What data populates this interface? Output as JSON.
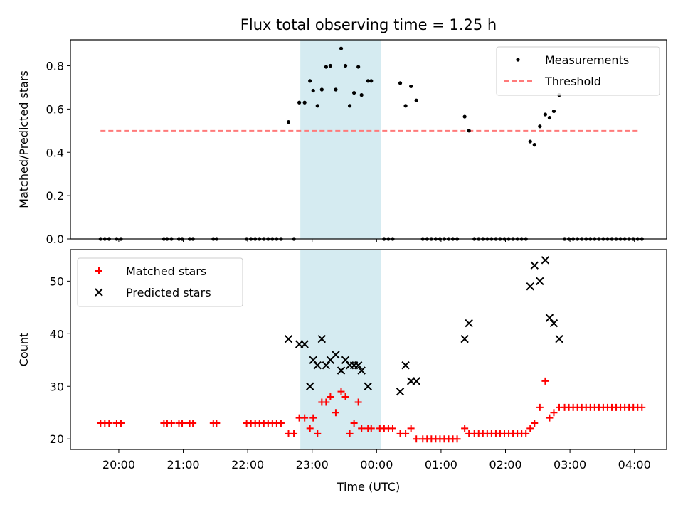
{
  "figure": {
    "title": "Flux total observing time = 1.25 h"
  },
  "chart_data": [
    {
      "type": "scatter",
      "ylabel": "Matched/Predicted stars",
      "xlim": [
        "19:15",
        "04:30"
      ],
      "ylim": [
        0,
        0.92
      ],
      "yticks": [
        0.0,
        0.2,
        0.4,
        0.6,
        0.8
      ],
      "ytick_labels": [
        "0.0",
        "0.2",
        "0.4",
        "0.6",
        "0.8"
      ],
      "grid": false,
      "legend": "top-right",
      "highlight_span": {
        "start": "22:49",
        "end": "00:04",
        "color": "#d3eaf0"
      },
      "threshold": {
        "name": "Threshold",
        "value": 0.5,
        "from": "19:43",
        "to": "04:05",
        "color": "#ff7a7a"
      },
      "series": [
        {
          "name": "Measurements",
          "color": "#000000",
          "marker": "dot",
          "points": [
            [
              "19:43",
              0
            ],
            [
              "19:47",
              0
            ],
            [
              "19:51",
              0
            ],
            [
              "19:58",
              0
            ],
            [
              "20:02",
              0
            ],
            [
              "20:42",
              0
            ],
            [
              "20:45",
              0
            ],
            [
              "20:49",
              0
            ],
            [
              "20:56",
              0
            ],
            [
              "20:59",
              0
            ],
            [
              "21:06",
              0
            ],
            [
              "21:09",
              0
            ],
            [
              "21:28",
              0
            ],
            [
              "21:31",
              0
            ],
            [
              "21:59",
              0
            ],
            [
              "22:03",
              0
            ],
            [
              "22:07",
              0
            ],
            [
              "22:11",
              0
            ],
            [
              "22:15",
              0
            ],
            [
              "22:19",
              0
            ],
            [
              "22:23",
              0
            ],
            [
              "22:27",
              0
            ],
            [
              "22:31",
              0
            ],
            [
              "22:43",
              0
            ],
            [
              "22:38",
              0.54
            ],
            [
              "22:48",
              0.63
            ],
            [
              "22:53",
              0.63
            ],
            [
              "22:58",
              0.73
            ],
            [
              "23:01",
              0.685
            ],
            [
              "23:05",
              0.615
            ],
            [
              "23:09",
              0.69
            ],
            [
              "23:13",
              0.795
            ],
            [
              "23:17",
              0.8
            ],
            [
              "23:22",
              0.69
            ],
            [
              "23:27",
              0.88
            ],
            [
              "23:31",
              0.8
            ],
            [
              "23:35",
              0.615
            ],
            [
              "23:39",
              0.675
            ],
            [
              "23:43",
              0.795
            ],
            [
              "23:46",
              0.665
            ],
            [
              "23:52",
              0.73
            ],
            [
              "23:55",
              0.73
            ],
            [
              "00:07",
              0
            ],
            [
              "00:11",
              0
            ],
            [
              "00:15",
              0
            ],
            [
              "00:22",
              0.72
            ],
            [
              "00:27",
              0.615
            ],
            [
              "00:32",
              0.705
            ],
            [
              "00:37",
              0.64
            ],
            [
              "00:43",
              0
            ],
            [
              "00:47",
              0
            ],
            [
              "00:51",
              0
            ],
            [
              "00:55",
              0
            ],
            [
              "00:59",
              0
            ],
            [
              "01:03",
              0
            ],
            [
              "01:07",
              0
            ],
            [
              "01:11",
              0
            ],
            [
              "01:15",
              0
            ],
            [
              "01:22",
              0.565
            ],
            [
              "01:26",
              0.5
            ],
            [
              "01:31",
              0
            ],
            [
              "01:35",
              0
            ],
            [
              "01:39",
              0
            ],
            [
              "01:43",
              0
            ],
            [
              "01:47",
              0
            ],
            [
              "01:51",
              0
            ],
            [
              "01:55",
              0
            ],
            [
              "01:59",
              0
            ],
            [
              "02:03",
              0
            ],
            [
              "02:07",
              0
            ],
            [
              "02:11",
              0
            ],
            [
              "02:15",
              0
            ],
            [
              "02:19",
              0
            ],
            [
              "02:23",
              0.45
            ],
            [
              "02:27",
              0.435
            ],
            [
              "02:32",
              0.52
            ],
            [
              "02:37",
              0.575
            ],
            [
              "02:41",
              0.56
            ],
            [
              "02:45",
              0.59
            ],
            [
              "02:50",
              0.665
            ],
            [
              "02:55",
              0
            ],
            [
              "02:59",
              0
            ],
            [
              "03:03",
              0
            ],
            [
              "03:07",
              0
            ],
            [
              "03:11",
              0
            ],
            [
              "03:15",
              0
            ],
            [
              "03:19",
              0
            ],
            [
              "03:23",
              0
            ],
            [
              "03:27",
              0
            ],
            [
              "03:31",
              0
            ],
            [
              "03:35",
              0
            ],
            [
              "03:39",
              0
            ],
            [
              "03:43",
              0
            ],
            [
              "03:47",
              0
            ],
            [
              "03:51",
              0
            ],
            [
              "03:55",
              0
            ],
            [
              "03:59",
              0
            ],
            [
              "04:03",
              0
            ],
            [
              "04:07",
              0
            ]
          ]
        }
      ]
    },
    {
      "type": "scatter",
      "xlabel": "Time (UTC)",
      "ylabel": "Count",
      "xlim": [
        "19:15",
        "04:30"
      ],
      "ylim": [
        18,
        56
      ],
      "xticks": [
        "20:00",
        "21:00",
        "22:00",
        "23:00",
        "00:00",
        "01:00",
        "02:00",
        "03:00",
        "04:00"
      ],
      "yticks": [
        20,
        30,
        40,
        50
      ],
      "ytick_labels": [
        "20",
        "30",
        "40",
        "50"
      ],
      "grid": false,
      "legend": "top-left",
      "highlight_span": {
        "start": "22:49",
        "end": "00:04",
        "color": "#d3eaf0"
      },
      "series": [
        {
          "name": "Matched stars",
          "color": "#ff0000",
          "marker": "plus",
          "points": [
            [
              "19:43",
              23
            ],
            [
              "19:47",
              23
            ],
            [
              "19:51",
              23
            ],
            [
              "19:58",
              23
            ],
            [
              "20:02",
              23
            ],
            [
              "20:42",
              23
            ],
            [
              "20:45",
              23
            ],
            [
              "20:49",
              23
            ],
            [
              "20:56",
              23
            ],
            [
              "20:59",
              23
            ],
            [
              "21:06",
              23
            ],
            [
              "21:09",
              23
            ],
            [
              "21:28",
              23
            ],
            [
              "21:31",
              23
            ],
            [
              "21:59",
              23
            ],
            [
              "22:03",
              23
            ],
            [
              "22:07",
              23
            ],
            [
              "22:11",
              23
            ],
            [
              "22:15",
              23
            ],
            [
              "22:19",
              23
            ],
            [
              "22:23",
              23
            ],
            [
              "22:27",
              23
            ],
            [
              "22:31",
              23
            ],
            [
              "22:38",
              21
            ],
            [
              "22:43",
              21
            ],
            [
              "22:48",
              24
            ],
            [
              "22:53",
              24
            ],
            [
              "22:58",
              22
            ],
            [
              "23:01",
              24
            ],
            [
              "23:05",
              21
            ],
            [
              "23:09",
              27
            ],
            [
              "23:13",
              27
            ],
            [
              "23:17",
              28
            ],
            [
              "23:22",
              25
            ],
            [
              "23:27",
              29
            ],
            [
              "23:31",
              28
            ],
            [
              "23:35",
              21
            ],
            [
              "23:39",
              23
            ],
            [
              "23:43",
              27
            ],
            [
              "23:46",
              22
            ],
            [
              "23:52",
              22
            ],
            [
              "23:55",
              22
            ],
            [
              "00:03",
              22
            ],
            [
              "00:07",
              22
            ],
            [
              "00:11",
              22
            ],
            [
              "00:15",
              22
            ],
            [
              "00:22",
              21
            ],
            [
              "00:27",
              21
            ],
            [
              "00:32",
              22
            ],
            [
              "00:37",
              20
            ],
            [
              "00:43",
              20
            ],
            [
              "00:47",
              20
            ],
            [
              "00:51",
              20
            ],
            [
              "00:55",
              20
            ],
            [
              "00:59",
              20
            ],
            [
              "01:03",
              20
            ],
            [
              "01:07",
              20
            ],
            [
              "01:11",
              20
            ],
            [
              "01:15",
              20
            ],
            [
              "01:22",
              22
            ],
            [
              "01:26",
              21
            ],
            [
              "01:31",
              21
            ],
            [
              "01:35",
              21
            ],
            [
              "01:39",
              21
            ],
            [
              "01:43",
              21
            ],
            [
              "01:47",
              21
            ],
            [
              "01:51",
              21
            ],
            [
              "01:55",
              21
            ],
            [
              "01:59",
              21
            ],
            [
              "02:03",
              21
            ],
            [
              "02:07",
              21
            ],
            [
              "02:11",
              21
            ],
            [
              "02:15",
              21
            ],
            [
              "02:19",
              21
            ],
            [
              "02:23",
              22
            ],
            [
              "02:27",
              23
            ],
            [
              "02:32",
              26
            ],
            [
              "02:37",
              31
            ],
            [
              "02:41",
              24
            ],
            [
              "02:45",
              25
            ],
            [
              "02:50",
              26
            ],
            [
              "02:55",
              26
            ],
            [
              "02:59",
              26
            ],
            [
              "03:03",
              26
            ],
            [
              "03:07",
              26
            ],
            [
              "03:11",
              26
            ],
            [
              "03:15",
              26
            ],
            [
              "03:19",
              26
            ],
            [
              "03:23",
              26
            ],
            [
              "03:27",
              26
            ],
            [
              "03:31",
              26
            ],
            [
              "03:35",
              26
            ],
            [
              "03:39",
              26
            ],
            [
              "03:43",
              26
            ],
            [
              "03:47",
              26
            ],
            [
              "03:51",
              26
            ],
            [
              "03:55",
              26
            ],
            [
              "03:59",
              26
            ],
            [
              "04:03",
              26
            ],
            [
              "04:07",
              26
            ]
          ]
        },
        {
          "name": "Predicted stars",
          "color": "#000000",
          "marker": "x",
          "points": [
            [
              "22:38",
              39
            ],
            [
              "22:48",
              38
            ],
            [
              "22:53",
              38
            ],
            [
              "22:58",
              30
            ],
            [
              "23:01",
              35
            ],
            [
              "23:05",
              34
            ],
            [
              "23:09",
              39
            ],
            [
              "23:13",
              34
            ],
            [
              "23:17",
              35
            ],
            [
              "23:22",
              36
            ],
            [
              "23:27",
              33
            ],
            [
              "23:31",
              35
            ],
            [
              "23:35",
              34
            ],
            [
              "23:39",
              34
            ],
            [
              "23:43",
              34
            ],
            [
              "23:46",
              33
            ],
            [
              "23:52",
              30
            ],
            [
              "00:22",
              29
            ],
            [
              "00:27",
              34
            ],
            [
              "00:32",
              31
            ],
            [
              "00:37",
              31
            ],
            [
              "01:22",
              39
            ],
            [
              "01:26",
              42
            ],
            [
              "02:23",
              49
            ],
            [
              "02:27",
              53
            ],
            [
              "02:32",
              50
            ],
            [
              "02:37",
              54
            ],
            [
              "02:41",
              43
            ],
            [
              "02:45",
              42
            ],
            [
              "02:50",
              39
            ]
          ]
        }
      ]
    }
  ]
}
